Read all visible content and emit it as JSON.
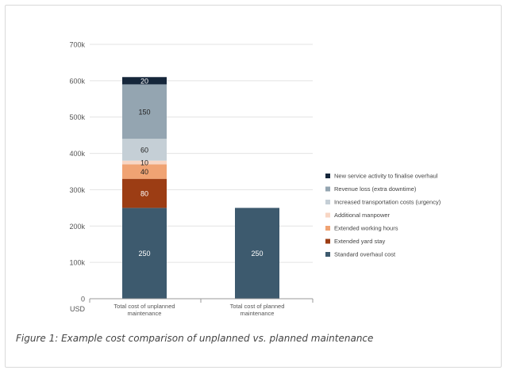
{
  "caption": "Figure 1: Example cost comparison of unplanned vs. planned maintenance",
  "chart_data": {
    "type": "bar",
    "stacked": true,
    "unit_label": "USD",
    "ylim": [
      0,
      700
    ],
    "yticks": [
      "0",
      "100k",
      "200k",
      "300k",
      "400k",
      "500k",
      "600k",
      "700k"
    ],
    "categories": [
      [
        "Total cost of unplanned",
        "maintenance"
      ],
      [
        "Total cost of planned",
        "maintenance"
      ]
    ],
    "grid": true,
    "legend_position": "right",
    "series": [
      {
        "name": "Standard overhaul cost",
        "color": "#3d5a6e",
        "values": [
          250,
          250
        ]
      },
      {
        "name": "Extended yard stay",
        "color": "#9c3d14",
        "values": [
          80,
          0
        ]
      },
      {
        "name": "Extended working hours",
        "color": "#f0a373",
        "values": [
          40,
          0
        ]
      },
      {
        "name": "Additional manpower",
        "color": "#f8d6c4",
        "values": [
          10,
          0
        ]
      },
      {
        "name": "Increased transportation costs (urgency)",
        "color": "#c5cfd6",
        "values": [
          60,
          0
        ]
      },
      {
        "name": "Revenue loss (extra downtime)",
        "color": "#94a5b1",
        "values": [
          150,
          0
        ]
      },
      {
        "name": "New service activity to finalise overhaul",
        "color": "#15263a",
        "values": [
          20,
          0
        ]
      }
    ]
  }
}
